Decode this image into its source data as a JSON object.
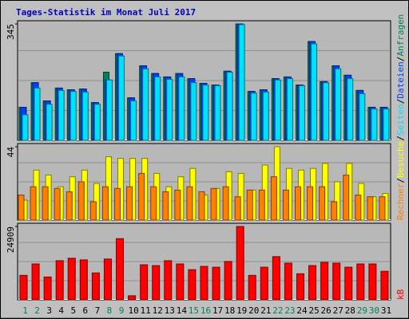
{
  "chart_data": {
    "type": "bar",
    "title": "Tages-Statistik im Monat Juli 2017",
    "categories": [
      "1",
      "2",
      "3",
      "4",
      "5",
      "6",
      "7",
      "8",
      "9",
      "10",
      "11",
      "12",
      "13",
      "14",
      "15",
      "16",
      "17",
      "18",
      "19",
      "20",
      "21",
      "22",
      "23",
      "24",
      "25",
      "26",
      "27",
      "28",
      "29",
      "30",
      "31"
    ],
    "category_colors": [
      "#00805c",
      "#00805c",
      "#000000",
      "#000000",
      "#000000",
      "#000000",
      "#000000",
      "#00805c",
      "#00805c",
      "#000000",
      "#000000",
      "#000000",
      "#000000",
      "#000000",
      "#00805c",
      "#00805c",
      "#000000",
      "#000000",
      "#000000",
      "#000000",
      "#000000",
      "#00805c",
      "#00805c",
      "#000000",
      "#000000",
      "#000000",
      "#000000",
      "#000000",
      "#00805c",
      "#00805c",
      "#000000"
    ],
    "separator": "/",
    "panels": [
      {
        "ylim": [
          0,
          345
        ],
        "yticks": [
          345
        ],
        "series": [
          {
            "name": "Anfragen",
            "color": "#00805c",
            "values": [
              98,
              171,
              117,
              155,
              150,
              152,
              112,
              202,
              257,
              126,
              221,
              198,
              188,
              198,
              183,
              169,
              164,
              205,
              345,
              145,
              150,
              183,
              188,
              164,
              293,
              174,
              221,
              193,
              148,
              98,
              98
            ]
          },
          {
            "name": "Dateien",
            "color": "#0040ff",
            "values": [
              98,
              171,
              117,
              155,
              150,
              152,
              112,
              179,
              257,
              126,
              221,
              198,
              188,
              198,
              183,
              169,
              164,
              205,
              345,
              145,
              150,
              183,
              188,
              164,
              293,
              174,
              221,
              193,
              148,
              98,
              98
            ]
          },
          {
            "name": "Seiten",
            "color": "#00e0ff",
            "values": [
              76,
              155,
              107,
              148,
              145,
              143,
              107,
              179,
              250,
              117,
              212,
              188,
              181,
              188,
              171,
              164,
              162,
              202,
              343,
              140,
              143,
              179,
              183,
              162,
              286,
              171,
              212,
              183,
              138,
              93,
              93
            ]
          }
        ]
      },
      {
        "ylim": [
          0,
          44
        ],
        "yticks": [
          44
        ],
        "series": [
          {
            "name": "Besuche",
            "color": "#ffff00",
            "values": [
              12,
              30,
              27,
              20,
              26,
              30,
              22,
              38,
              37,
              37,
              37,
              28,
              20,
              26,
              31,
              15,
              19,
              29,
              28,
              18,
              33,
              44,
              31,
              30,
              31,
              34,
              23,
              34,
              22,
              14,
              16
            ]
          },
          {
            "name": "Rechner",
            "color": "#ff8000",
            "values": [
              15,
              20,
              20,
              19,
              17,
              23,
              11,
              20,
              19,
              20,
              28,
              20,
              17,
              18,
              20,
              17,
              19,
              20,
              14,
              18,
              18,
              26,
              18,
              20,
              20,
              20,
              11,
              27,
              15,
              14,
              14
            ]
          }
        ]
      },
      {
        "ylim": [
          0,
          24909
        ],
        "yticks": [
          24909
        ],
        "series": [
          {
            "name": "kB",
            "color": "#ff0000",
            "values": [
              8310,
              12190,
              7760,
              13300,
              14130,
              13570,
              9140,
              13850,
              20780,
              1390,
              11910,
              11630,
              13300,
              12190,
              10250,
              11360,
              11080,
              13020,
              24909,
              8310,
              11080,
              14680,
              12470,
              8860,
              11630,
              12740,
              12470,
              11080,
              12190,
              12190,
              9700
            ]
          }
        ]
      }
    ]
  }
}
